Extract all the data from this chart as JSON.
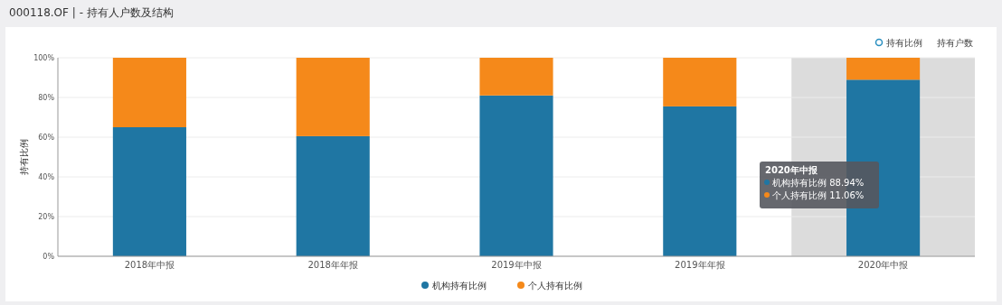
{
  "chart_data": {
    "type": "bar",
    "title": "000118.OF | - 持有人户数及结构",
    "ylabel": "持有比例",
    "categories": [
      "2018年中报",
      "2018年年报",
      "2019年中报",
      "2019年年报",
      "2020年中报"
    ],
    "stacked": true,
    "series": [
      {
        "name": "机构持有比例",
        "color": "#1f76a3",
        "values": [
          65,
          60.5,
          81,
          75.5,
          88.94
        ]
      },
      {
        "name": "个人持有比例",
        "color": "#f5891a",
        "values": [
          35,
          39.5,
          19,
          24.5,
          11.06
        ]
      }
    ],
    "ylim": [
      0,
      100
    ],
    "yticks": [
      {
        "value": 0,
        "label": "0%"
      },
      {
        "value": 20,
        "label": "20%"
      },
      {
        "value": 40,
        "label": "40%"
      },
      {
        "value": 60,
        "label": "60%"
      },
      {
        "value": 80,
        "label": "80%"
      },
      {
        "value": 100,
        "label": "100%"
      }
    ],
    "grid": "y",
    "legend": "bottom",
    "bands": [
      {
        "axis": "x",
        "from": "2020年中报",
        "to": "2020年中报",
        "color": "#dcdcdc"
      }
    ],
    "annotations": [
      "2020年中报",
      "机构持有比例  88.94%",
      "个人持有比例  11.06%",
      "持有比例",
      "持有户数"
    ]
  }
}
